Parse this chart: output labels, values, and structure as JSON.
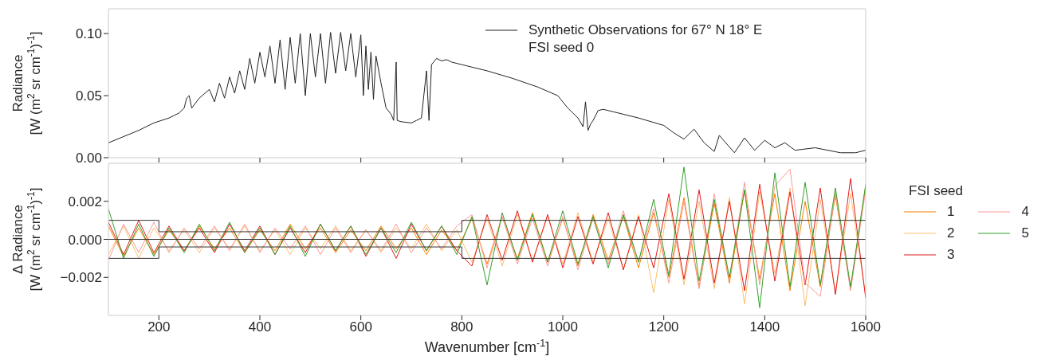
{
  "chart_data": [
    {
      "type": "line",
      "ylabel": "Radiance\n[W (m$^{2}$ sr cm$^{-1}$)$^{-1}$]",
      "xlim": [
        100,
        1600
      ],
      "xticks": [
        200,
        400,
        600,
        800,
        1000,
        1200,
        1400,
        1600
      ],
      "ylim": [
        0,
        0.12
      ],
      "yticks": [
        {
          "value": 0,
          "label": "0.00"
        },
        {
          "value": 0.05,
          "label": "0.05"
        },
        {
          "value": 0.1,
          "label": "0.10"
        }
      ],
      "tick_labels": "y",
      "legend": "top right",
      "series": [
        {
          "name": "Synthetic Observations for 67° N 18° E\nFSI seed 0",
          "color": "#222222",
          "x": [
            100,
            130,
            160,
            190,
            220,
            240,
            250,
            255,
            260,
            265,
            280,
            300,
            310,
            320,
            330,
            340,
            350,
            360,
            370,
            380,
            390,
            400,
            410,
            420,
            430,
            440,
            450,
            460,
            470,
            480,
            490,
            500,
            510,
            520,
            530,
            540,
            550,
            560,
            570,
            580,
            590,
            600,
            605,
            610,
            615,
            620,
            625,
            630,
            640,
            650,
            660,
            665,
            670,
            672,
            680,
            700,
            710,
            720,
            730,
            735,
            740,
            750,
            760,
            770,
            780,
            800,
            850,
            900,
            950,
            990,
            1010,
            1030,
            1040,
            1045,
            1050,
            1055,
            1060,
            1070,
            1080,
            1100,
            1150,
            1200,
            1220,
            1240,
            1260,
            1280,
            1300,
            1310,
            1340,
            1360,
            1380,
            1400,
            1420,
            1440,
            1460,
            1500,
            1550,
            1580,
            1600
          ],
          "values": [
            0.012,
            0.017,
            0.022,
            0.028,
            0.032,
            0.036,
            0.04,
            0.048,
            0.05,
            0.04,
            0.048,
            0.055,
            0.045,
            0.06,
            0.048,
            0.065,
            0.052,
            0.07,
            0.055,
            0.08,
            0.06,
            0.085,
            0.065,
            0.09,
            0.06,
            0.095,
            0.055,
            0.097,
            0.06,
            0.1,
            0.05,
            0.1,
            0.065,
            0.1,
            0.06,
            0.101,
            0.068,
            0.101,
            0.07,
            0.1,
            0.065,
            0.099,
            0.05,
            0.09,
            0.055,
            0.085,
            0.047,
            0.082,
            0.06,
            0.04,
            0.035,
            0.03,
            0.077,
            0.03,
            0.029,
            0.028,
            0.03,
            0.032,
            0.07,
            0.03,
            0.075,
            0.08,
            0.078,
            0.079,
            0.077,
            0.075,
            0.07,
            0.064,
            0.057,
            0.05,
            0.04,
            0.032,
            0.025,
            0.045,
            0.022,
            0.027,
            0.03,
            0.038,
            0.039,
            0.037,
            0.032,
            0.026,
            0.02,
            0.015,
            0.023,
            0.012,
            0.005,
            0.018,
            0.004,
            0.016,
            0.006,
            0.014,
            0.008,
            0.012,
            0.006,
            0.008,
            0.004,
            0.004,
            0.006
          ]
        }
      ]
    },
    {
      "type": "line",
      "xlabel": "Wavenumber [cm$^{-1}$]",
      "ylabel": "Δ Radiance\n[W (m$^{2}$ sr cm$^{-1}$)$^{-1}$]",
      "legend_title": "FSI seed",
      "legend": "right",
      "xlim": [
        100,
        1600
      ],
      "xticks": [
        200,
        400,
        600,
        800,
        1000,
        1200,
        1400,
        1600
      ],
      "ylim": [
        -0.004,
        0.004
      ],
      "yticks": [
        {
          "value": -0.002,
          "label": "−0.002"
        },
        {
          "value": 0,
          "label": "0.000"
        },
        {
          "value": 0.002,
          "label": "0.002"
        }
      ],
      "x": [
        100,
        130,
        160,
        190,
        220,
        250,
        280,
        310,
        340,
        370,
        400,
        430,
        460,
        490,
        520,
        550,
        580,
        610,
        640,
        670,
        700,
        730,
        760,
        790,
        820,
        850,
        880,
        910,
        940,
        970,
        1000,
        1030,
        1060,
        1090,
        1120,
        1150,
        1180,
        1210,
        1240,
        1270,
        1300,
        1330,
        1360,
        1390,
        1420,
        1450,
        1480,
        1510,
        1540,
        1570,
        1600
      ],
      "ref_lines": [
        {
          "axis": "y",
          "value": 0,
          "color": "#333333"
        }
      ],
      "series": [
        {
          "name": "1",
          "color": "#ff7f00",
          "values": [
            0.0007,
            -0.0009,
            0.0006,
            -0.0008,
            0.0005,
            -0.0006,
            0.0007,
            -0.0005,
            0.0006,
            -0.0007,
            0.0005,
            -0.0006,
            0.0008,
            -0.0005,
            0.0006,
            -0.0007,
            0.0005,
            -0.0006,
            0.0007,
            -0.0005,
            0.0006,
            -0.0008,
            0.0005,
            -0.0006,
            0.0011,
            -0.0013,
            0.0012,
            -0.001,
            0.0014,
            -0.0012,
            0.0011,
            -0.0014,
            0.0013,
            -0.0011,
            0.0012,
            -0.0015,
            0.0014,
            -0.002,
            0.0022,
            -0.0025,
            0.0019,
            -0.0023,
            0.0026,
            -0.0021,
            0.0024,
            -0.0027,
            0.002,
            -0.0025,
            0.0023,
            -0.0026,
            0.0028
          ]
        },
        {
          "name": "2",
          "color": "#fdbf6f",
          "values": [
            -0.0008,
            0.0007,
            -0.001,
            0.0006,
            -0.0006,
            0.0005,
            -0.0007,
            0.0006,
            -0.0005,
            0.0007,
            -0.0006,
            0.0005,
            -0.0008,
            0.0006,
            -0.0005,
            0.0007,
            -0.0006,
            0.0005,
            -0.0007,
            0.0006,
            -0.0005,
            0.0008,
            -0.0006,
            0.0005,
            -0.0012,
            0.0011,
            -0.0014,
            0.0013,
            -0.0011,
            0.0012,
            -0.0013,
            0.0014,
            -0.0012,
            0.0011,
            -0.0016,
            0.0013,
            -0.0028,
            0.0021,
            -0.0024,
            0.002,
            -0.0026,
            0.0022,
            -0.0034,
            0.0025,
            -0.0018,
            0.0027,
            -0.0035,
            0.0021,
            -0.0028,
            0.0024,
            -0.003
          ]
        },
        {
          "name": "3",
          "color": "#e31a1c",
          "values": [
            0.0009,
            -0.0008,
            0.001,
            -0.0007,
            0.0007,
            -0.0006,
            0.0006,
            -0.0007,
            0.0008,
            -0.0006,
            0.0007,
            -0.0008,
            0.0006,
            -0.0007,
            0.0008,
            -0.0006,
            0.0007,
            -0.0009,
            0.0006,
            -0.001,
            0.0008,
            -0.0006,
            0.0007,
            -0.0006,
            -0.0014,
            0.0013,
            -0.0011,
            0.0015,
            -0.0012,
            0.0013,
            -0.0015,
            0.0012,
            -0.0013,
            0.0014,
            -0.0016,
            0.0012,
            -0.0015,
            0.0024,
            -0.0021,
            0.0026,
            -0.0023,
            0.002,
            -0.0027,
            0.0029,
            -0.0022,
            0.0025,
            -0.0024,
            0.0027,
            -0.0029,
            0.0032,
            -0.0031
          ]
        },
        {
          "name": "4",
          "color": "#fb9a99",
          "values": [
            -0.0011,
            0.0008,
            -0.0007,
            0.0009,
            -0.0007,
            0.0006,
            -0.0005,
            0.0007,
            -0.0006,
            0.0008,
            -0.0007,
            0.0006,
            -0.0005,
            0.0007,
            -0.0008,
            0.0006,
            -0.0007,
            0.0005,
            -0.0006,
            0.0008,
            -0.0007,
            0.0006,
            -0.0005,
            0.0007,
            0.0013,
            -0.0015,
            0.0012,
            -0.0013,
            0.0011,
            -0.0014,
            0.0012,
            -0.0016,
            0.0011,
            -0.0013,
            0.0015,
            -0.0012,
            0.0016,
            -0.0023,
            0.002,
            -0.0026,
            0.0024,
            -0.0021,
            0.003,
            -0.0024,
            0.0028,
            0.0037,
            -0.0023,
            -0.003,
            0.0025,
            -0.0027,
            0.0026
          ]
        },
        {
          "name": "5",
          "color": "#33a02c",
          "values": [
            0.0016,
            -0.001,
            0.0008,
            -0.0009,
            0.0006,
            -0.0007,
            0.0008,
            -0.0006,
            0.0009,
            -0.0007,
            0.0006,
            -0.0008,
            0.0007,
            -0.0009,
            0.0008,
            -0.0006,
            0.0007,
            -0.0008,
            0.0006,
            -0.0007,
            0.0009,
            -0.0006,
            0.0007,
            -0.0008,
            0.0012,
            -0.0024,
            0.0014,
            -0.0011,
            0.0013,
            -0.0012,
            0.0015,
            -0.0013,
            0.0012,
            -0.0015,
            0.0013,
            -0.0012,
            0.0021,
            -0.0019,
            0.0038,
            -0.0022,
            0.0021,
            -0.002,
            0.0026,
            -0.0036,
            0.0035,
            -0.0025,
            0.003,
            -0.0024,
            0.0027,
            -0.0025,
            0.0029
          ]
        },
        {
          "type": "step",
          "color": "#333333",
          "x": [
            100,
            200,
            800,
            1600
          ],
          "values": [
            0.001,
            0.0004,
            0.001,
            0.001
          ]
        },
        {
          "type": "step",
          "color": "#333333",
          "x": [
            100,
            200,
            800,
            1600
          ],
          "values": [
            -0.001,
            -0.0004,
            -0.001,
            -0.001
          ]
        }
      ]
    }
  ]
}
